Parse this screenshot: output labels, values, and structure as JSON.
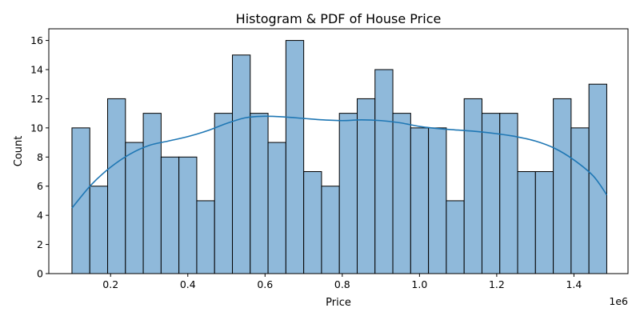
{
  "chart_data": {
    "type": "bar",
    "title": "Histogram & PDF of House Price",
    "xlabel": "Price",
    "ylabel": "Count",
    "x_offset_label": "1e6",
    "xlim": [
      0.04,
      1.54
    ],
    "ylim": [
      0,
      16.8
    ],
    "xticks": [
      0.2,
      0.4,
      0.6,
      0.8,
      1.0,
      1.2,
      1.4
    ],
    "xtick_labels": [
      "0.2",
      "0.4",
      "0.6",
      "0.8",
      "1.0",
      "1.2",
      "1.4"
    ],
    "yticks": [
      0,
      2,
      4,
      6,
      8,
      10,
      12,
      14,
      16
    ],
    "ytick_labels": [
      "0",
      "2",
      "4",
      "6",
      "8",
      "10",
      "12",
      "14",
      "16"
    ],
    "bin_start": 0.1,
    "bin_end": 1.485,
    "values": [
      10,
      6,
      12,
      9,
      11,
      8,
      8,
      5,
      11,
      15,
      11,
      9,
      16,
      7,
      6,
      11,
      12,
      14,
      11,
      10,
      10,
      5,
      12,
      11,
      11,
      7,
      7,
      12,
      10,
      13
    ],
    "kde": {
      "x": [
        0.1,
        0.15,
        0.2,
        0.25,
        0.3,
        0.35,
        0.4,
        0.45,
        0.5,
        0.55,
        0.6,
        0.65,
        0.7,
        0.75,
        0.8,
        0.85,
        0.9,
        0.95,
        1.0,
        1.05,
        1.1,
        1.15,
        1.2,
        1.25,
        1.3,
        1.35,
        1.4,
        1.45,
        1.485
      ],
      "y": [
        4.5,
        6.1,
        7.3,
        8.2,
        8.8,
        9.1,
        9.4,
        9.8,
        10.3,
        10.7,
        10.8,
        10.75,
        10.65,
        10.55,
        10.5,
        10.55,
        10.5,
        10.35,
        10.1,
        9.95,
        9.85,
        9.75,
        9.6,
        9.4,
        9.1,
        8.6,
        7.8,
        6.7,
        5.4
      ]
    },
    "bar_color": "#8fb9da",
    "bar_edge_color": "#000000",
    "kde_color": "#1f77b4",
    "grid": false,
    "legend": "none"
  }
}
